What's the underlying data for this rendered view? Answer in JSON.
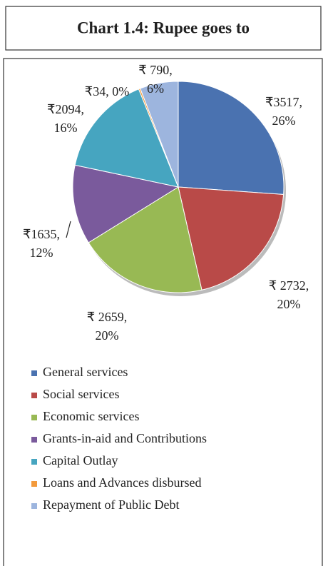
{
  "chart_data": {
    "type": "pie",
    "title": "Chart 1.4: Rupee goes to",
    "categories": [
      "General services",
      "Social services",
      "Economic services",
      "Grants-in-aid and Contributions",
      "Capital Outlay",
      "Loans and Advances disbursed",
      "Repayment of Public Debt"
    ],
    "values": [
      3517,
      2732,
      2659,
      1635,
      2094,
      34,
      790
    ],
    "value_labels": [
      [
        "₹3517,",
        "26%"
      ],
      [
        "₹ 2732,",
        "20%"
      ],
      [
        "₹ 2659,",
        "20%"
      ],
      [
        "₹1635,",
        "12%"
      ],
      [
        "₹2094,",
        "16%"
      ],
      [
        "₹34, 0%"
      ],
      [
        "₹ 790,",
        "6%"
      ]
    ],
    "colors": [
      "#4a72b0",
      "#b94a48",
      "#98b954",
      "#7a5a9c",
      "#46a5c0",
      "#f39a3c",
      "#9db5de"
    ],
    "legend": "bottom"
  }
}
